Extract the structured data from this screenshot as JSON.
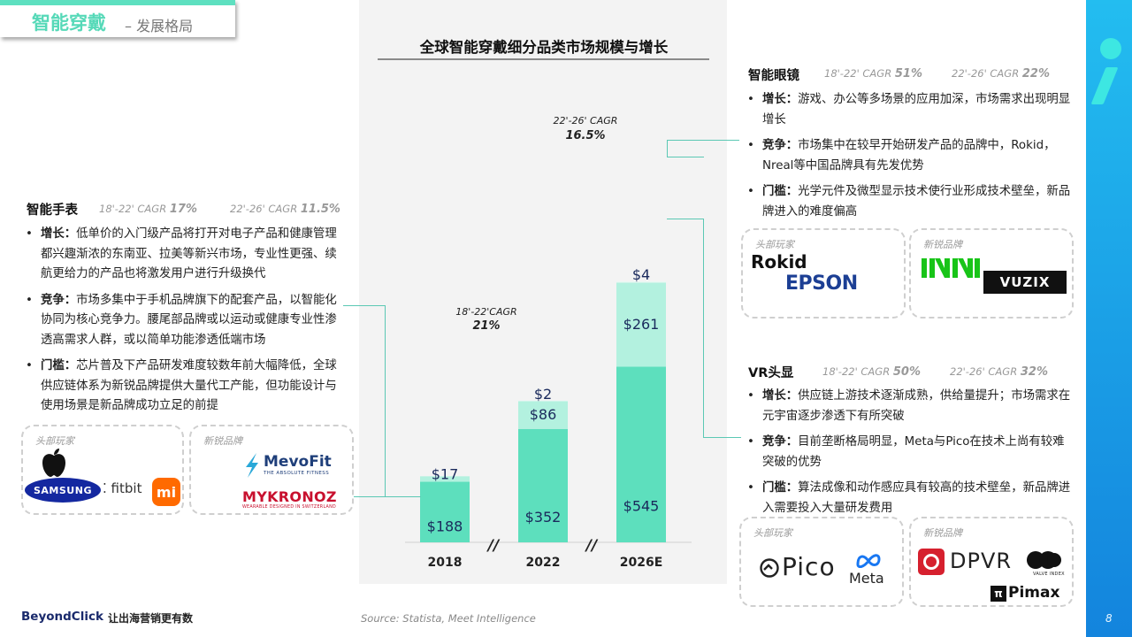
{
  "header": {
    "title": "智能穿戴",
    "subtitle": "– 发展格局"
  },
  "chart_data": {
    "type": "bar",
    "title": "全球智能穿戴细分品类市场规模与增长",
    "categories": [
      "2018",
      "2022",
      "2026E"
    ],
    "series": [
      {
        "values": [
          188,
          352,
          545
        ],
        "value_labels": [
          "$188",
          "$352",
          "$545"
        ]
      },
      {
        "values": [
          17,
          86,
          261
        ],
        "value_labels": [
          "$17",
          "$86",
          "$261"
        ]
      },
      {
        "values": [
          0,
          2,
          4
        ],
        "value_labels": [
          "",
          "$2",
          "$4"
        ]
      }
    ],
    "colors": [
      "#5ddfbd",
      "#b3f1df",
      "#eaf9f4"
    ],
    "annotations": [
      {
        "label": "18'-22'CAGR",
        "value": "21%"
      },
      {
        "label": "22'-26' CAGR",
        "value": "16.5%"
      }
    ],
    "axis_break": "//"
  },
  "watch": {
    "title": "智能手表",
    "cagr1_label": "18'-22' CAGR ",
    "cagr1_value": "17%",
    "cagr2_label": "22'-26' CAGR ",
    "cagr2_value": "11.5%",
    "bullets": [
      {
        "key": "增长：",
        "text": "低单价的入门级产品将打开对电子产品和健康管理都兴趣渐浓的东南亚、拉美等新兴市场，专业性更强、续航更给力的产品也将激发用户进行升级换代"
      },
      {
        "key": "竞争：",
        "text": "市场多集中于手机品牌旗下的配套产品，以智能化协同为核心竞争力。腰尾部品牌或以运动或健康专业性渗透高需求人群，或以简单功能渗透低端市场"
      },
      {
        "key": "门槛：",
        "text": "芯片普及下产品研发难度较数年前大幅降低，全球供应链体系为新锐品牌提供大量代工产能，但功能设计与使用场景是新品牌成功立足的前提"
      }
    ],
    "leaders_label": "头部玩家",
    "leaders": [
      "SAMSUNG",
      "fitbit",
      "mi"
    ],
    "leaders_icons": [
      "apple-logo-icon",
      "mi-logo-icon"
    ],
    "newcomers_label": "新锐品牌",
    "newcomers": [
      "MevoFit",
      "THE ABSOLUTE FITNESS",
      "MYKRONOZ",
      "WEARABLE DESIGNED IN SWITZERLAND"
    ]
  },
  "glasses": {
    "title": "智能眼镜",
    "cagr1_label": "18'-22' CAGR ",
    "cagr1_value": "51%",
    "cagr2_label": "22'-26' CAGR ",
    "cagr2_value": "22%",
    "bullets": [
      {
        "key": "增长：",
        "text": "游戏、办公等多场景的应用加深，市场需求出现明显增长"
      },
      {
        "key": "竞争：",
        "text": "市场集中在较早开始研发产品的品牌中，Rokid，Nreal等中国品牌具有先发优势"
      },
      {
        "key": "门槛：",
        "text": "光学元件及微型显示技术使行业形成技术壁垒，新品牌进入的难度偏高"
      }
    ],
    "leaders_label": "头部玩家",
    "leaders": [
      "Rokid",
      "EPSON"
    ],
    "newcomers_label": "新锐品牌",
    "newcomers": [
      "VUZIX"
    ],
    "newcomers_icons": [
      "nreal-logo-icon"
    ]
  },
  "vr": {
    "title": "VR头显",
    "cagr1_label": "18'-22' CAGR ",
    "cagr1_value": "50%",
    "cagr2_label": "22'-26' CAGR ",
    "cagr2_value": "32%",
    "bullets": [
      {
        "key": "增长：",
        "text": "供应链上游技术逐渐成熟，供给量提升；市场需求在元宇宙逐步渗透下有所突破"
      },
      {
        "key": "竞争：",
        "text": "目前垄断格局明显，Meta与Pico在技术上尚有较难突破的优势"
      },
      {
        "key": "门槛：",
        "text": "算法成像和动作感应具有较高的技术壁垒，新品牌进入需要投入大量研发费用"
      }
    ],
    "leaders_label": "头部玩家",
    "leaders": [
      "Pico",
      "Meta"
    ],
    "newcomers_label": "新锐品牌",
    "newcomers": [
      "DPVR",
      "VALVE INDEX",
      "Pimax"
    ]
  },
  "footer": {
    "brand": "BeyondClick",
    "tagline": "让出海营销更有数",
    "source": "Source: Statista, Meet Intelligence",
    "page": "8"
  }
}
